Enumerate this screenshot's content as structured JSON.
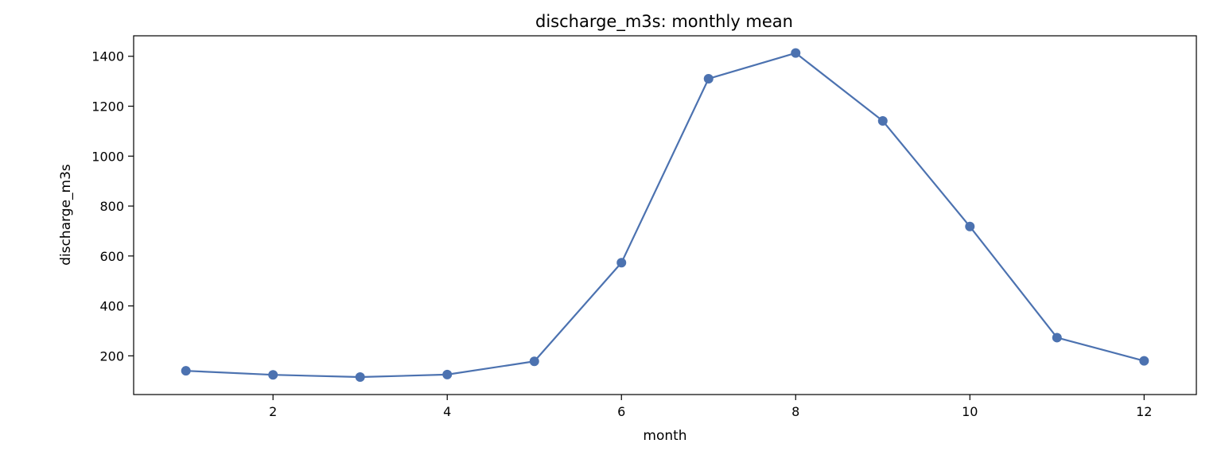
{
  "chart_data": {
    "type": "line",
    "title": "discharge_m3s: monthly mean",
    "xlabel": "month",
    "ylabel": "discharge_m3s",
    "x": [
      1,
      2,
      3,
      4,
      5,
      6,
      7,
      8,
      9,
      10,
      11,
      12
    ],
    "series": [
      {
        "values": [
          140,
          124,
          115,
          125,
          178,
          573,
          1310,
          1413,
          1141,
          718,
          273,
          180
        ],
        "color": "#4c72b0",
        "marker": "circle"
      }
    ],
    "xlim": [
      0.4,
      12.6
    ],
    "ylim": [
      45,
      1482
    ],
    "xticks": [
      2,
      4,
      6,
      8,
      10,
      12
    ],
    "yticks": [
      200,
      400,
      600,
      800,
      1000,
      1200,
      1400
    ],
    "grid": false,
    "legend": "none"
  }
}
